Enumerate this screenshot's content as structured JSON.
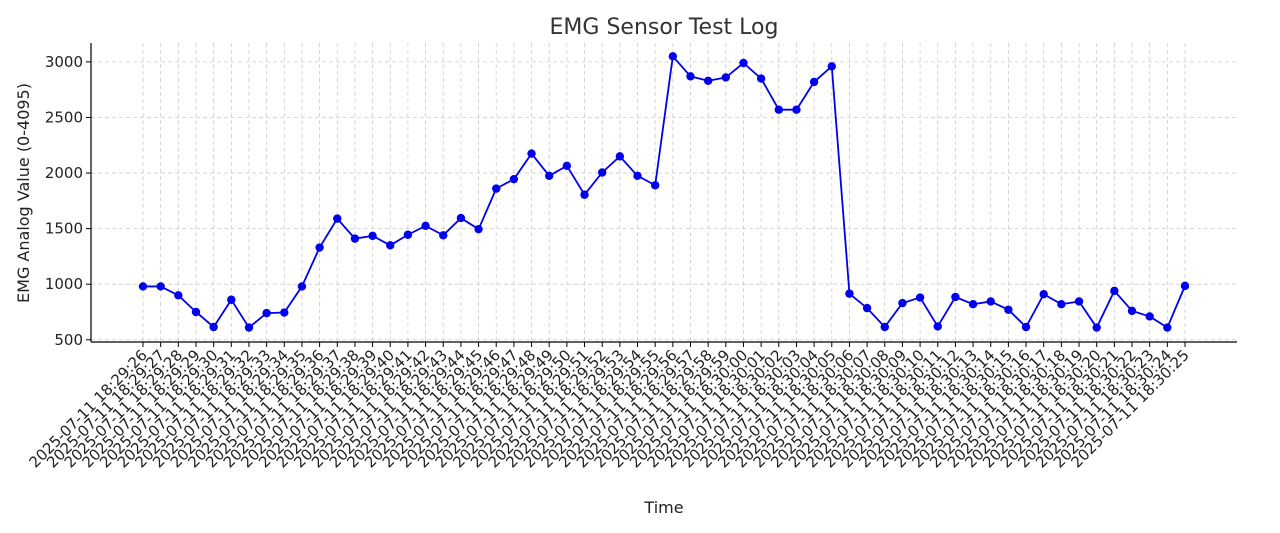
{
  "chart_data": {
    "type": "line",
    "title": "EMG Sensor Test Log",
    "xlabel": "Time",
    "ylabel": "EMG Analog Value (0-4095)",
    "ylim": [
      480,
      3170
    ],
    "yticks": [
      500,
      1000,
      1500,
      2000,
      2500,
      3000
    ],
    "grid": true,
    "line_color": "#0000ee",
    "x": [
      "2025-07-11 18:29:26",
      "2025-07-11 18:29:27",
      "2025-07-11 18:29:28",
      "2025-07-11 18:29:29",
      "2025-07-11 18:29:30",
      "2025-07-11 18:29:31",
      "2025-07-11 18:29:32",
      "2025-07-11 18:29:33",
      "2025-07-11 18:29:34",
      "2025-07-11 18:29:35",
      "2025-07-11 18:29:36",
      "2025-07-11 18:29:37",
      "2025-07-11 18:29:38",
      "2025-07-11 18:29:39",
      "2025-07-11 18:29:40",
      "2025-07-11 18:29:41",
      "2025-07-11 18:29:42",
      "2025-07-11 18:29:43",
      "2025-07-11 18:29:44",
      "2025-07-11 18:29:45",
      "2025-07-11 18:29:46",
      "2025-07-11 18:29:47",
      "2025-07-11 18:29:48",
      "2025-07-11 18:29:49",
      "2025-07-11 18:29:50",
      "2025-07-11 18:29:51",
      "2025-07-11 18:29:52",
      "2025-07-11 18:29:53",
      "2025-07-11 18:29:54",
      "2025-07-11 18:29:55",
      "2025-07-11 18:29:56",
      "2025-07-11 18:29:57",
      "2025-07-11 18:29:58",
      "2025-07-11 18:29:59",
      "2025-07-11 18:30:00",
      "2025-07-11 18:30:01",
      "2025-07-11 18:30:02",
      "2025-07-11 18:30:03",
      "2025-07-11 18:30:04",
      "2025-07-11 18:30:05",
      "2025-07-11 18:30:06",
      "2025-07-11 18:30:07",
      "2025-07-11 18:30:08",
      "2025-07-11 18:30:09",
      "2025-07-11 18:30:10",
      "2025-07-11 18:30:11",
      "2025-07-11 18:30:12",
      "2025-07-11 18:30:13",
      "2025-07-11 18:30:14",
      "2025-07-11 18:30:15",
      "2025-07-11 18:30:16",
      "2025-07-11 18:30:17",
      "2025-07-11 18:30:18",
      "2025-07-11 18:30:19",
      "2025-07-11 18:30:20",
      "2025-07-11 18:30:21",
      "2025-07-11 18:30:22",
      "2025-07-11 18:30:23",
      "2025-07-11 18:30:24",
      "2025-07-11 18:30:25"
    ],
    "series": [
      {
        "values": [
          980,
          980,
          900,
          750,
          615,
          860,
          610,
          740,
          745,
          980,
          1330,
          1590,
          1410,
          1435,
          1350,
          1445,
          1525,
          1440,
          1595,
          1495,
          1860,
          1945,
          2175,
          1975,
          2065,
          1805,
          2005,
          2150,
          1975,
          1890,
          3050,
          2870,
          2830,
          2860,
          2990,
          2850,
          2570,
          2570,
          2820,
          2960,
          915,
          785,
          615,
          830,
          880,
          620,
          885,
          820,
          845,
          770,
          615,
          910,
          820,
          845,
          610,
          940,
          760,
          710,
          610,
          985
        ]
      }
    ]
  }
}
